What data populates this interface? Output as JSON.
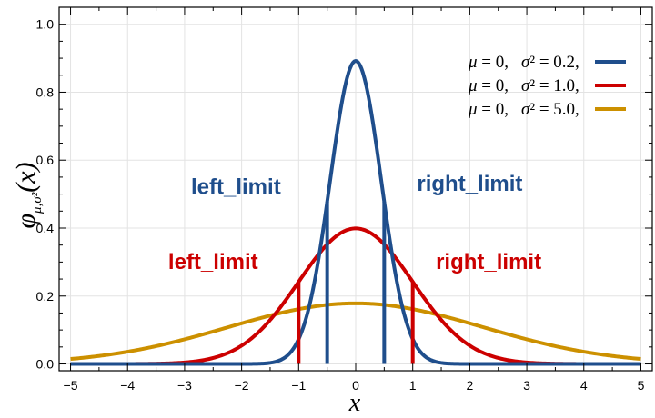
{
  "chart_data": {
    "type": "line",
    "xlabel": "x",
    "ylabel": "φμ,σ²(x)",
    "ylabel_parts": {
      "main": "φ",
      "sub": "μ,σ²",
      "arg": "(x)"
    },
    "xlim": [
      -5.2,
      5.2
    ],
    "ylim": [
      -0.02,
      1.05
    ],
    "grid": true,
    "xticks": [
      -5,
      -4,
      -3,
      -2,
      -1,
      0,
      1,
      2,
      3,
      4,
      5
    ],
    "xtick_labels": [
      "−5",
      "−4",
      "−3",
      "−2",
      "−1",
      "0",
      "1",
      "2",
      "3",
      "4",
      "5"
    ],
    "yticks": [
      0.0,
      0.2,
      0.4,
      0.6,
      0.8,
      1.0
    ],
    "ytick_labels": [
      "0.0",
      "0.2",
      "0.4",
      "0.6",
      "0.8",
      "1.0"
    ],
    "legend_position": "top-right",
    "series": [
      {
        "name": "μ=0, σ²=0.2",
        "mu": 0,
        "sigma2": 0.2,
        "color": "#1f4e8c",
        "legend_mu": "μ",
        "legend_mu_val": " = 0,",
        "legend_sigma": "σ",
        "legend_sigma_val": "² = 0.2,"
      },
      {
        "name": "μ=0, σ²=1.0",
        "mu": 0,
        "sigma2": 1.0,
        "color": "#cc0000",
        "legend_mu": "μ",
        "legend_mu_val": " = 0,",
        "legend_sigma": "σ",
        "legend_sigma_val": "² = 1.0,"
      },
      {
        "name": "μ=0, σ²=5.0",
        "mu": 0,
        "sigma2": 5.0,
        "color": "#cc9000",
        "legend_mu": "μ",
        "legend_mu_val": " = 0,",
        "legend_sigma": "σ",
        "legend_sigma_val": "² = 5.0,"
      }
    ],
    "limit_lines": [
      {
        "series": 0,
        "x": -0.5,
        "color": "#1f4e8c"
      },
      {
        "series": 0,
        "x": 0.5,
        "color": "#1f4e8c"
      },
      {
        "series": 1,
        "x": -1.0,
        "color": "#cc0000"
      },
      {
        "series": 1,
        "x": 1.0,
        "color": "#cc0000"
      }
    ],
    "annotations": [
      {
        "text": "left_limit",
        "color": "#1f4e8c",
        "x": -2.1,
        "y": 0.5,
        "anchor": "middle"
      },
      {
        "text": "right_limit",
        "color": "#1f4e8c",
        "x": 2.0,
        "y": 0.51,
        "anchor": "middle"
      },
      {
        "text": "left_limit",
        "color": "#cc0000",
        "x": -2.5,
        "y": 0.28,
        "anchor": "middle"
      },
      {
        "text": "right_limit",
        "color": "#cc0000",
        "x": 2.33,
        "y": 0.28,
        "anchor": "middle"
      }
    ]
  }
}
